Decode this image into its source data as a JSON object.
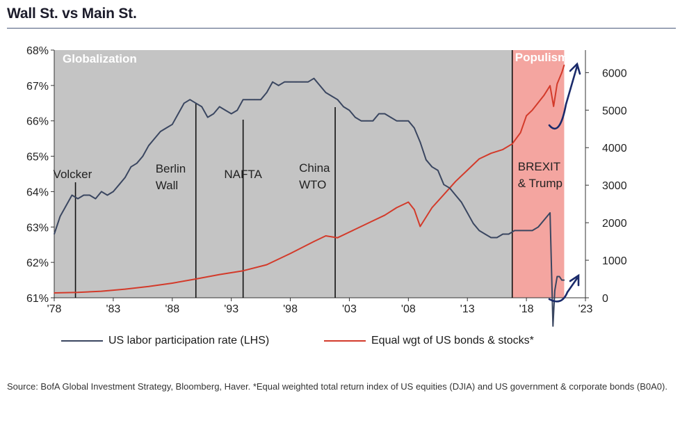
{
  "title": "Wall St. vs Main St.",
  "source": "Source: BofA Global Investment Strategy, Bloomberg, Haver. *Equal weighted total return index of US equities (DJIA) and US government & corporate bonds (B0A0).",
  "colors": {
    "labor": "#3a4660",
    "index": "#d33a2a",
    "globalization_bg": "#c4c4c4",
    "populism_bg": "#f4a5a0",
    "arrow": "#1a2a6a"
  },
  "chart_data": {
    "type": "line",
    "title": "Wall St. vs Main St.",
    "x_ticks": [
      "'78",
      "'83",
      "'88",
      "'93",
      "'98",
      "'03",
      "'08",
      "'13",
      "'18",
      "'23"
    ],
    "xlim": [
      1978,
      2023
    ],
    "left_axis": {
      "ylim": [
        61,
        68
      ],
      "ticks": [
        "61%",
        "62%",
        "63%",
        "64%",
        "65%",
        "66%",
        "67%",
        "68%"
      ]
    },
    "right_axis": {
      "ylim": [
        0,
        6600
      ],
      "ticks": [
        "0",
        "1000",
        "2000",
        "3000",
        "4000",
        "5000",
        "6000"
      ]
    },
    "regions": [
      {
        "label": "Globalization",
        "from": 1978,
        "to": 2016.8
      },
      {
        "label": "Populism",
        "from": 2016.8,
        "to": 2021.2
      }
    ],
    "events": [
      {
        "year": 1979.8,
        "lines": [
          "Volcker"
        ]
      },
      {
        "year": 1990.0,
        "lines": [
          "Berlin",
          "Wall"
        ]
      },
      {
        "year": 1994.0,
        "lines": [
          "NAFTA"
        ]
      },
      {
        "year": 2001.8,
        "lines": [
          "China",
          "WTO"
        ]
      },
      {
        "year": 2016.8,
        "lines": [
          "BREXIT",
          "& Trump"
        ]
      }
    ],
    "series": [
      {
        "name": "US labor participation rate (LHS)",
        "axis": "left",
        "x": [
          1978,
          1978.5,
          1979,
          1979.5,
          1980,
          1980.5,
          1981,
          1981.5,
          1982,
          1982.5,
          1983,
          1983.5,
          1984,
          1984.5,
          1985,
          1985.5,
          1986,
          1986.5,
          1987,
          1987.5,
          1988,
          1988.5,
          1989,
          1989.5,
          1990,
          1990.5,
          1991,
          1991.5,
          1992,
          1992.5,
          1993,
          1993.5,
          1994,
          1994.5,
          1995,
          1995.5,
          1996,
          1996.5,
          1997,
          1997.5,
          1998,
          1998.5,
          1999,
          1999.5,
          2000,
          2000.5,
          2001,
          2001.5,
          2002,
          2002.5,
          2003,
          2003.5,
          2004,
          2004.5,
          2005,
          2005.5,
          2006,
          2006.5,
          2007,
          2007.5,
          2008,
          2008.5,
          2009,
          2009.5,
          2010,
          2010.5,
          2011,
          2011.5,
          2012,
          2012.5,
          2013,
          2013.5,
          2014,
          2014.5,
          2015,
          2015.5,
          2016,
          2016.5,
          2017,
          2017.5,
          2018,
          2018.5,
          2019,
          2019.5,
          2020,
          2020.25,
          2020.4,
          2020.6,
          2020.8,
          2021,
          2021.2
        ],
        "values": [
          62.8,
          63.3,
          63.6,
          63.9,
          63.8,
          63.9,
          63.9,
          63.8,
          64.0,
          63.9,
          64.0,
          64.2,
          64.4,
          64.7,
          64.8,
          65.0,
          65.3,
          65.5,
          65.7,
          65.8,
          65.9,
          66.2,
          66.5,
          66.6,
          66.5,
          66.4,
          66.1,
          66.2,
          66.4,
          66.3,
          66.2,
          66.3,
          66.6,
          66.6,
          66.6,
          66.6,
          66.8,
          67.1,
          67.0,
          67.1,
          67.1,
          67.1,
          67.1,
          67.1,
          67.2,
          67.0,
          66.8,
          66.7,
          66.6,
          66.4,
          66.3,
          66.1,
          66.0,
          66.0,
          66.0,
          66.2,
          66.2,
          66.1,
          66.0,
          66.0,
          66.0,
          65.8,
          65.4,
          64.9,
          64.7,
          64.6,
          64.2,
          64.1,
          63.9,
          63.7,
          63.4,
          63.1,
          62.9,
          62.8,
          62.7,
          62.7,
          62.8,
          62.8,
          62.9,
          62.9,
          62.9,
          62.9,
          63.0,
          63.2,
          63.4,
          60.2,
          61.2,
          61.6,
          61.6,
          61.5,
          61.5
        ]
      },
      {
        "name": "Equal wgt of US bonds & stocks*",
        "axis": "right",
        "x": [
          1978,
          1980,
          1982,
          1984,
          1986,
          1988,
          1990,
          1992,
          1994,
          1996,
          1998,
          2000,
          2001,
          2002,
          2003,
          2004,
          2005,
          2006,
          2007,
          2008,
          2008.5,
          2009,
          2009.5,
          2010,
          2011,
          2012,
          2013,
          2014,
          2015,
          2016,
          2016.8,
          2017.5,
          2018,
          2018.5,
          2019,
          2019.5,
          2020,
          2020.3,
          2020.6,
          2021,
          2021.2
        ],
        "values": [
          130,
          145,
          175,
          230,
          300,
          390,
          500,
          620,
          720,
          880,
          1180,
          1500,
          1650,
          1600,
          1750,
          1900,
          2050,
          2200,
          2400,
          2550,
          2350,
          1900,
          2150,
          2400,
          2750,
          3100,
          3400,
          3700,
          3850,
          3950,
          4100,
          4400,
          4850,
          5000,
          5200,
          5400,
          5650,
          5100,
          5700,
          6000,
          6200
        ]
      }
    ],
    "annotations": [
      "Globalization",
      "Populism",
      "Volcker",
      "Berlin",
      "Wall",
      "NAFTA",
      "China",
      "WTO",
      "BREXIT",
      "& Trump"
    ]
  },
  "legend": {
    "labor_label": "US labor participation rate (LHS)",
    "index_label": "Equal wgt of US bonds & stocks*"
  }
}
